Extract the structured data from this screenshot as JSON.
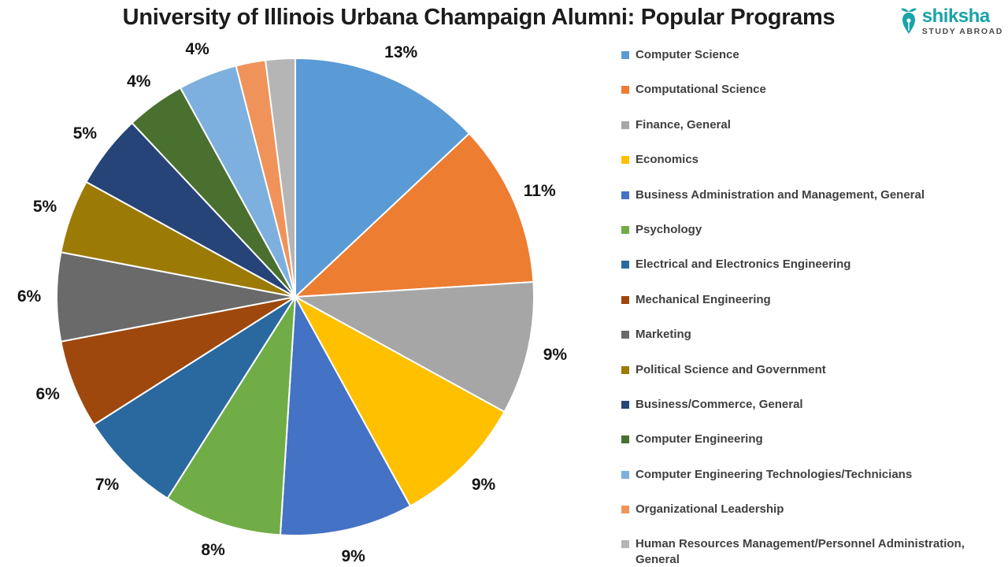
{
  "brand": {
    "name": "shiksha",
    "tagline": "STUDY ABROAD",
    "color": "#18a3a9"
  },
  "chart_data": {
    "type": "pie",
    "title": "University of Illinois Urbana Champaign Alumni: Popular Programs",
    "unit": "%",
    "direction": "clockwise",
    "start_angle_deg": 0,
    "legend_position": "right",
    "grid": false,
    "slices": [
      {
        "label": "Computer Science",
        "value": 13,
        "color": "#5B9BD5",
        "show_label": true
      },
      {
        "label": "Computational Science",
        "value": 11,
        "color": "#ED7D31",
        "show_label": true
      },
      {
        "label": "Finance, General",
        "value": 9,
        "color": "#A6A6A6",
        "show_label": true
      },
      {
        "label": "Economics",
        "value": 9,
        "color": "#FFC000",
        "show_label": true
      },
      {
        "label": "Business Administration and Management, General",
        "value": 9,
        "color": "#4472C4",
        "show_label": true
      },
      {
        "label": "Psychology",
        "value": 8,
        "color": "#70AD47",
        "show_label": true
      },
      {
        "label": "Electrical and Electronics Engineering",
        "value": 7,
        "color": "#2A68A0",
        "show_label": true
      },
      {
        "label": "Mechanical Engineering",
        "value": 6,
        "color": "#9E480E",
        "show_label": true
      },
      {
        "label": "Marketing",
        "value": 6,
        "color": "#6A6A6A",
        "show_label": true
      },
      {
        "label": "Political Science and Government",
        "value": 5,
        "color": "#9C7A06",
        "show_label": true
      },
      {
        "label": "Business/Commerce, General",
        "value": 5,
        "color": "#264478",
        "show_label": true
      },
      {
        "label": "Computer Engineering",
        "value": 4,
        "color": "#4A7030",
        "show_label": true
      },
      {
        "label": "Computer Engineering Technologies/Technicians",
        "value": 4,
        "color": "#7DB0DE",
        "show_label": true
      },
      {
        "label": "Organizational Leadership",
        "value": 2,
        "color": "#F0935B",
        "show_label": false
      },
      {
        "label": "Human Resources Management/Personnel Administration, General",
        "value": 2,
        "color": "#B5B5B5",
        "show_label": false
      }
    ]
  }
}
